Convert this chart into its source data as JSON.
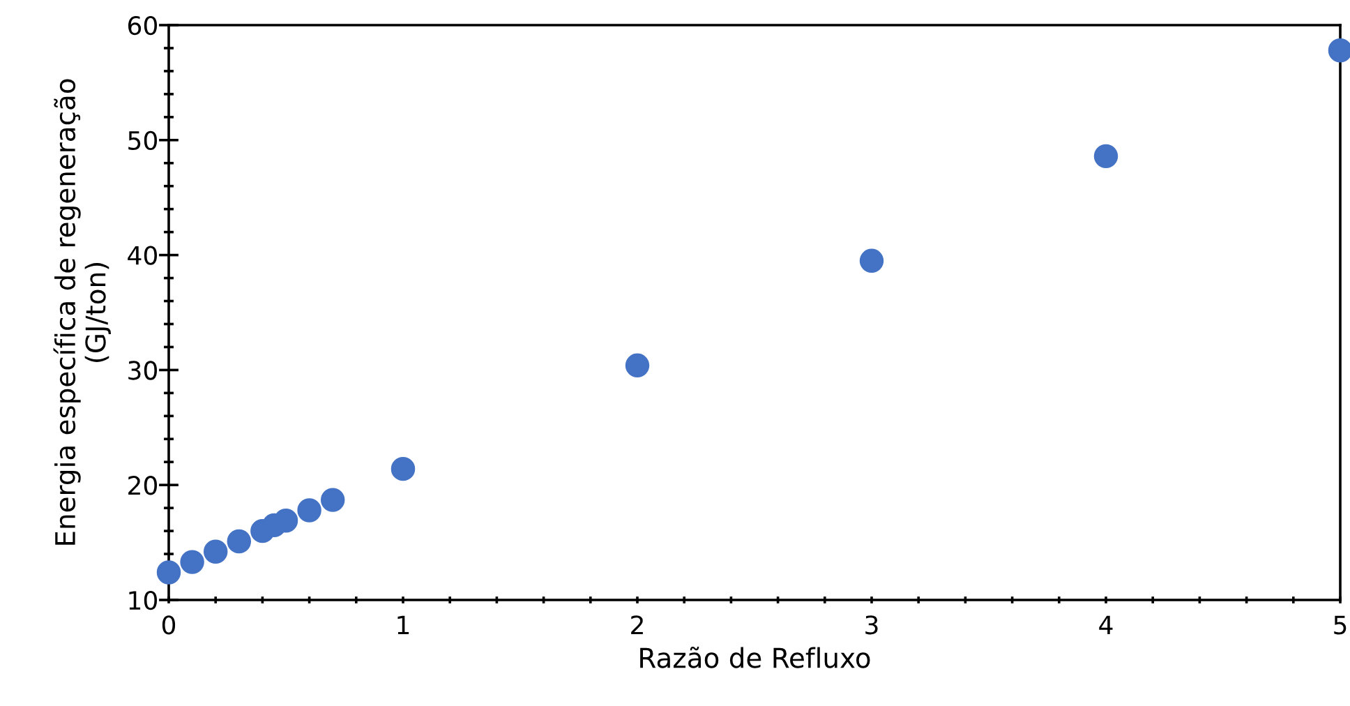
{
  "chart_data": {
    "type": "scatter",
    "xlabel": "Razão de Refluxo",
    "ylabel": "Energia específica de regeneração\n(GJ/ton)",
    "x": [
      0,
      0.1,
      0.2,
      0.3,
      0.4,
      0.45,
      0.5,
      0.6,
      0.7,
      1,
      2,
      3,
      4,
      5
    ],
    "values": [
      12.4,
      13.3,
      14.2,
      15.1,
      16.0,
      16.5,
      16.9,
      17.8,
      18.7,
      21.4,
      30.4,
      39.5,
      48.6,
      57.8
    ],
    "color": "#4472c4",
    "marker": "circle",
    "grid": false,
    "legend": false,
    "xlim": [
      0,
      5
    ],
    "xticks": [
      0,
      {
        "value": 0.2,
        "label": null
      },
      {
        "value": 0.4,
        "label": null
      },
      {
        "value": 0.6,
        "label": null
      },
      {
        "value": 0.8,
        "label": null
      },
      1,
      {
        "value": 1.2,
        "label": null
      },
      {
        "value": 1.4,
        "label": null
      },
      {
        "value": 1.6,
        "label": null
      },
      {
        "value": 1.8,
        "label": null
      },
      2,
      {
        "value": 2.2,
        "label": null
      },
      {
        "value": 2.4,
        "label": null
      },
      {
        "value": 2.6,
        "label": null
      },
      {
        "value": 2.8,
        "label": null
      },
      3,
      {
        "value": 3.2,
        "label": null
      },
      {
        "value": 3.4,
        "label": null
      },
      {
        "value": 3.6,
        "label": null
      },
      {
        "value": 3.8,
        "label": null
      },
      4,
      {
        "value": 4.2,
        "label": null
      },
      {
        "value": 4.4,
        "label": null
      },
      {
        "value": 4.6,
        "label": null
      },
      {
        "value": 4.8,
        "label": null
      },
      5
    ],
    "ylim": [
      10,
      60
    ],
    "yticks": [
      10,
      {
        "value": 12,
        "label": null
      },
      {
        "value": 14,
        "label": null
      },
      {
        "value": 16,
        "label": null
      },
      {
        "value": 18,
        "label": null
      },
      20,
      {
        "value": 22,
        "label": null
      },
      {
        "value": 24,
        "label": null
      },
      {
        "value": 26,
        "label": null
      },
      {
        "value": 28,
        "label": null
      },
      30,
      {
        "value": 32,
        "label": null
      },
      {
        "value": 34,
        "label": null
      },
      {
        "value": 36,
        "label": null
      },
      {
        "value": 38,
        "label": null
      },
      40,
      {
        "value": 42,
        "label": null
      },
      {
        "value": 44,
        "label": null
      },
      {
        "value": 46,
        "label": null
      },
      {
        "value": 48,
        "label": null
      },
      50,
      {
        "value": 52,
        "label": null
      },
      {
        "value": 54,
        "label": null
      },
      {
        "value": 56,
        "label": null
      },
      {
        "value": 58,
        "label": null
      },
      60
    ]
  }
}
